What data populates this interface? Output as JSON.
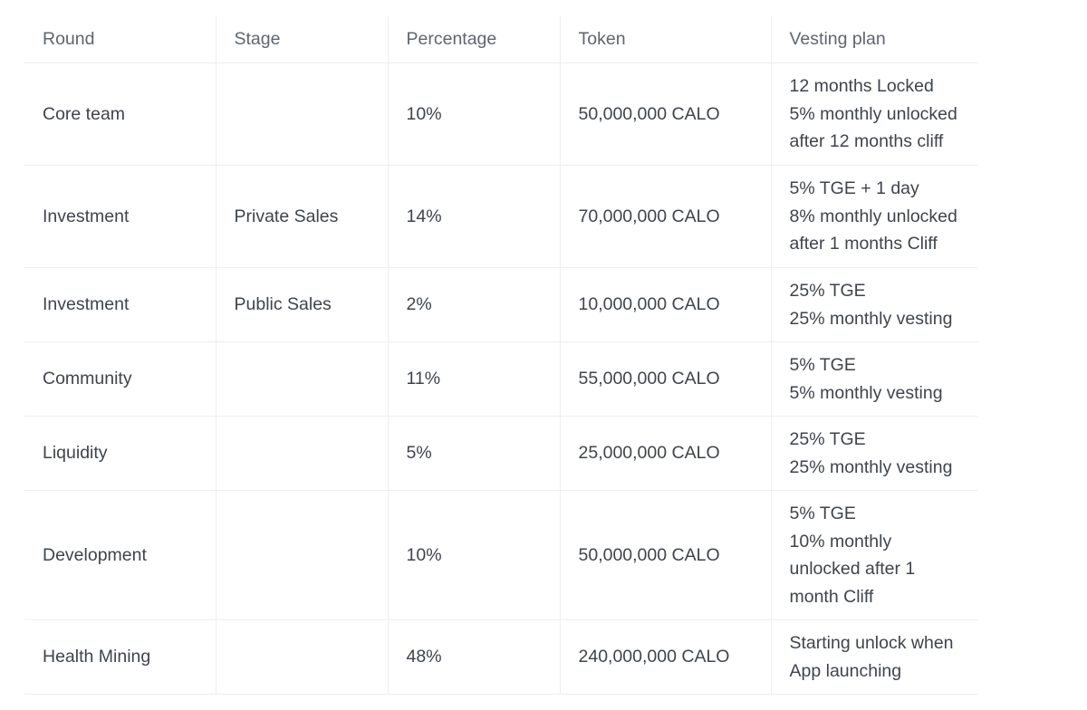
{
  "table": {
    "headers": [
      "Round",
      "Stage",
      "Percentage",
      "Token",
      "Vesting plan"
    ],
    "rows": [
      {
        "round": "Core team",
        "stage": "",
        "percentage": "10%",
        "token": "50,000,000 CALO",
        "vesting": [
          "12 months Locked",
          "5% monthly unlocked",
          "after 12 months cliff"
        ]
      },
      {
        "round": "Investment",
        "stage": "Private Sales",
        "percentage": "14%",
        "token": "70,000,000 CALO",
        "vesting": [
          "5% TGE + 1 day",
          "8% monthly unlocked",
          "after 1 months Cliff"
        ]
      },
      {
        "round": "Investment",
        "stage": "Public Sales",
        "percentage": "2%",
        "token": "10,000,000 CALO",
        "vesting": [
          "25% TGE",
          "25% monthly vesting"
        ]
      },
      {
        "round": "Community",
        "stage": "",
        "percentage": "11%",
        "token": "55,000,000 CALO",
        "vesting": [
          "5% TGE",
          "5% monthly vesting"
        ]
      },
      {
        "round": "Liquidity",
        "stage": "",
        "percentage": "5%",
        "token": "25,000,000 CALO",
        "vesting": [
          "25% TGE",
          "25% monthly vesting"
        ]
      },
      {
        "round": "Development",
        "stage": "",
        "percentage": "10%",
        "token": "50,000,000 CALO",
        "vesting": [
          "5% TGE",
          "10% monthly",
          "unlocked after 1",
          "month Cliff"
        ]
      },
      {
        "round": "Health Mining",
        "stage": "",
        "percentage": "48%",
        "token": "240,000,000 CALO",
        "vesting": [
          "Starting unlock when",
          "App launching"
        ]
      }
    ]
  }
}
